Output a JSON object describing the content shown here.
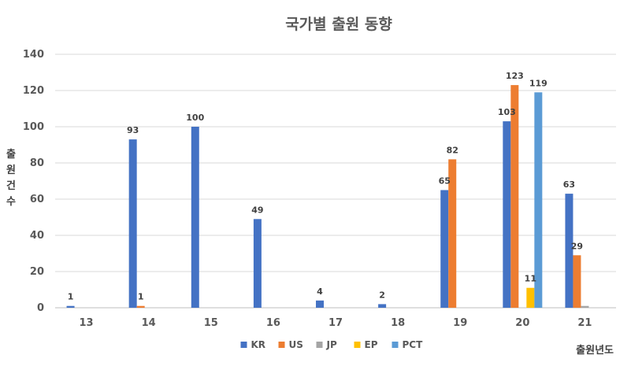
{
  "chart_data": {
    "type": "bar",
    "title": "국가별 출원 동향",
    "ylabel": "출원건수",
    "xlabel": "출원년도",
    "categories": [
      "13",
      "14",
      "15",
      "16",
      "17",
      "18",
      "19",
      "20",
      "21"
    ],
    "ylim": [
      0,
      140
    ],
    "yticks": [
      "0",
      "20",
      "40",
      "60",
      "80",
      "100",
      "120",
      "140"
    ],
    "grid": true,
    "legend_position": "bottom",
    "series": [
      {
        "name": "KR",
        "color": "#4472C4",
        "values": [
          1,
          93,
          100,
          49,
          4,
          2,
          65,
          103,
          63
        ],
        "labels": [
          "1",
          "93",
          "100",
          "49",
          "4",
          "2",
          "65",
          "103",
          "63"
        ]
      },
      {
        "name": "US",
        "color": "#ED7D31",
        "values": [
          0,
          1,
          0,
          0,
          0,
          0,
          82,
          123,
          29
        ],
        "labels": [
          "",
          "1",
          "",
          "",
          "",
          "",
          "82",
          "123",
          "29"
        ]
      },
      {
        "name": "JP",
        "color": "#A5A5A5",
        "values": [
          0,
          0,
          0,
          0,
          0,
          0,
          0,
          0,
          1
        ],
        "labels": [
          "",
          "",
          "",
          "",
          "",
          "",
          "",
          "",
          ""
        ]
      },
      {
        "name": "EP",
        "color": "#FFC000",
        "values": [
          0,
          0,
          0,
          0,
          0,
          0,
          0,
          11,
          0
        ],
        "labels": [
          "",
          "",
          "",
          "",
          "",
          "",
          "",
          "11",
          ""
        ]
      },
      {
        "name": "PCT",
        "color": "#5B9BD5",
        "values": [
          0,
          0,
          0,
          0,
          0,
          0,
          0,
          119,
          0
        ],
        "labels": [
          "",
          "",
          "",
          "",
          "",
          "",
          "",
          "119",
          ""
        ]
      }
    ]
  }
}
